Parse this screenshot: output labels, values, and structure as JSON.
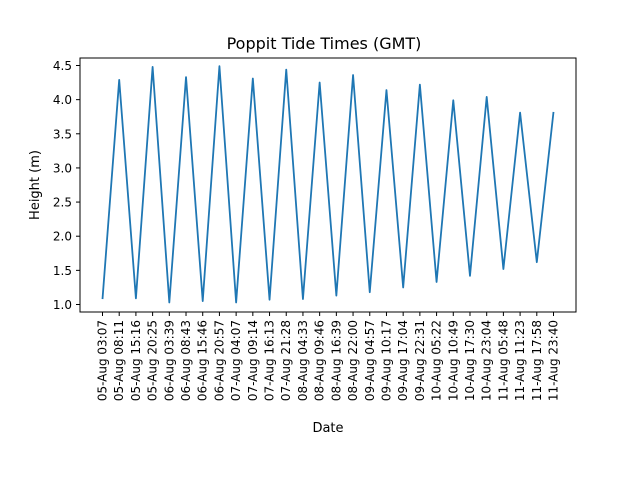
{
  "chart_data": {
    "type": "line",
    "title": "Poppit Tide Times (GMT)",
    "xlabel": "Date",
    "ylabel": "Height (m)",
    "ylim": [
      0.89,
      4.61
    ],
    "yticks": [
      1.0,
      1.5,
      2.0,
      2.5,
      3.0,
      3.5,
      4.0,
      4.5
    ],
    "grid": false,
    "line_color": "#1f77b4",
    "x": [
      "05-Aug 03:07",
      "05-Aug 08:11",
      "05-Aug 15:16",
      "05-Aug 20:25",
      "06-Aug 03:39",
      "06-Aug 08:43",
      "06-Aug 15:46",
      "06-Aug 20:57",
      "07-Aug 04:07",
      "07-Aug 09:14",
      "07-Aug 16:13",
      "07-Aug 21:28",
      "08-Aug 04:33",
      "08-Aug 09:46",
      "08-Aug 16:39",
      "08-Aug 22:00",
      "09-Aug 04:57",
      "09-Aug 10:17",
      "09-Aug 17:04",
      "09-Aug 22:31",
      "10-Aug 05:22",
      "10-Aug 10:49",
      "10-Aug 17:30",
      "10-Aug 23:04",
      "11-Aug 05:48",
      "11-Aug 11:23",
      "11-Aug 17:58",
      "11-Aug 23:40"
    ],
    "values": [
      1.08,
      4.29,
      1.09,
      4.48,
      1.03,
      4.33,
      1.05,
      4.49,
      1.03,
      4.31,
      1.07,
      4.44,
      1.08,
      4.25,
      1.13,
      4.36,
      1.18,
      4.14,
      1.25,
      4.22,
      1.33,
      3.99,
      1.42,
      4.04,
      1.52,
      3.81,
      1.62,
      3.82
    ]
  }
}
